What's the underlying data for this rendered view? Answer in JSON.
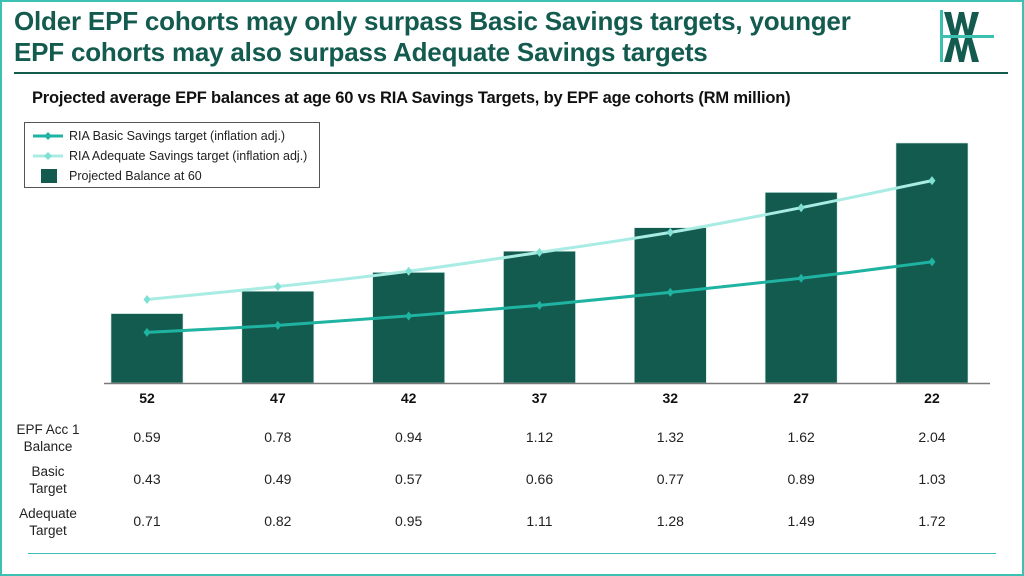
{
  "header": {
    "headline": "Older EPF cohorts may only surpass Basic Savings targets, younger EPF cohorts may also surpass Adequate Savings targets",
    "logo_icon": "wm-logo-icon"
  },
  "colors": {
    "primary_dark": "#135a4f",
    "basic_line": "#1fb3a1",
    "adequate_line": "#a8ece4",
    "accent_border": "#3cc0b2"
  },
  "chart_data": {
    "type": "bar",
    "title": "Projected average EPF balances at age 60 vs RIA Savings Targets, by EPF age cohorts (RM million)",
    "xlabel": "",
    "ylabel": "",
    "categories": [
      "52",
      "47",
      "42",
      "37",
      "32",
      "27",
      "22"
    ],
    "ylim": [
      0,
      2.04
    ],
    "grid": false,
    "legend_position": "top-left",
    "series": [
      {
        "name": "Projected Balance at 60",
        "kind": "bar",
        "values": [
          0.59,
          0.78,
          0.94,
          1.12,
          1.32,
          1.62,
          2.04
        ]
      },
      {
        "name": "RIA Basic Savings target (inflation adj.)",
        "kind": "line",
        "values": [
          0.43,
          0.49,
          0.57,
          0.66,
          0.77,
          0.89,
          1.03
        ]
      },
      {
        "name": "RIA Adequate Savings target (inflation adj.)",
        "kind": "line",
        "values": [
          0.71,
          0.82,
          0.95,
          1.11,
          1.28,
          1.49,
          1.72
        ]
      }
    ]
  },
  "legend": [
    {
      "label": "RIA Basic Savings target (inflation adj.)",
      "icon": "line-diamond-icon"
    },
    {
      "label": "RIA Adequate Savings target (inflation adj.)",
      "icon": "line-diamond-icon"
    },
    {
      "label": "Projected Balance at 60",
      "icon": "bar-swatch-icon"
    }
  ],
  "table": {
    "rows": [
      {
        "label_line1": "EPF Acc 1",
        "label_line2": "Balance",
        "values": [
          "0.59",
          "0.78",
          "0.94",
          "1.12",
          "1.32",
          "1.62",
          "2.04"
        ]
      },
      {
        "label_line1": "Basic",
        "label_line2": "Target",
        "values": [
          "0.43",
          "0.49",
          "0.57",
          "0.66",
          "0.77",
          "0.89",
          "1.03"
        ]
      },
      {
        "label_line1": "Adequate",
        "label_line2": "Target",
        "values": [
          "0.71",
          "0.82",
          "0.95",
          "1.11",
          "1.28",
          "1.49",
          "1.72"
        ]
      }
    ]
  }
}
